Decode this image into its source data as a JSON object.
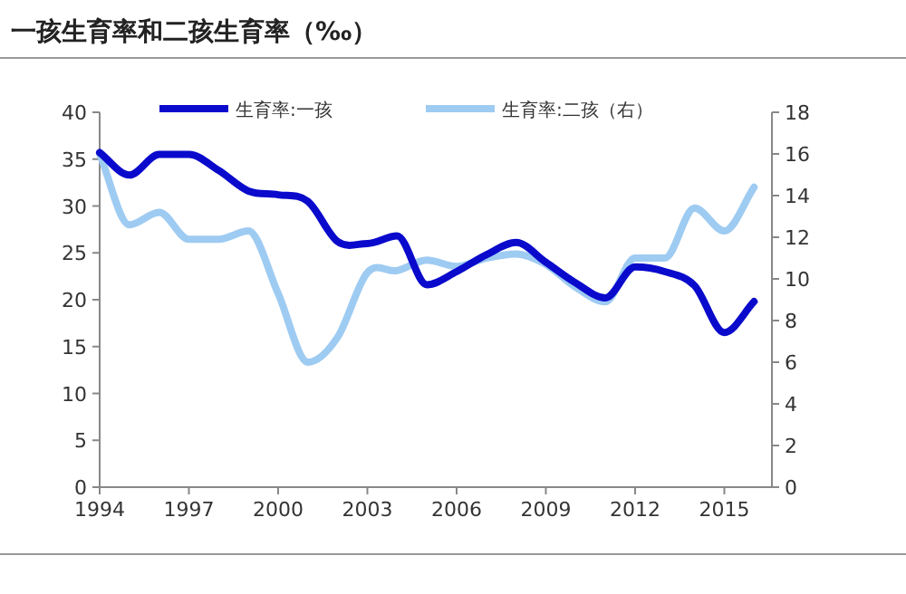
{
  "chart_data": {
    "type": "line",
    "title": "一孩生育率和二孩生育率（‰）",
    "x": [
      1994,
      1995,
      1996,
      1997,
      1998,
      1999,
      2000,
      2001,
      2002,
      2003,
      2004,
      2005,
      2006,
      2007,
      2008,
      2009,
      2010,
      2011,
      2012,
      2013,
      2014,
      2015,
      2016
    ],
    "series": [
      {
        "name": "生育率:一孩",
        "color": "#0a0acc",
        "values": [
          35.7,
          33.3,
          35.5,
          35.5,
          33.8,
          31.6,
          31.2,
          30.5,
          26.2,
          26.0,
          26.8,
          21.6,
          23.0,
          24.8,
          26.1,
          24.0,
          21.8,
          20.2,
          23.5,
          23.0,
          21.5,
          16.5,
          19.8
        ]
      },
      {
        "name": "生育率:二孩（右）",
        "color": "#9ecbf2",
        "axis": "y2",
        "values": [
          16.0,
          12.6,
          13.2,
          11.9,
          11.9,
          12.3,
          9.3,
          6.0,
          7.2,
          10.3,
          10.4,
          10.9,
          10.6,
          11.0,
          11.2,
          10.7,
          9.6,
          8.9,
          11.0,
          11.0,
          13.4,
          12.3,
          14.4
        ]
      }
    ],
    "xlim": [
      1994,
      2016.6
    ],
    "xticks": [
      1994,
      1997,
      2000,
      2003,
      2006,
      2009,
      2012,
      2015
    ],
    "ylim": [
      0,
      40
    ],
    "yticks": [
      0,
      5,
      10,
      15,
      20,
      25,
      30,
      35,
      40
    ],
    "y2lim": [
      0,
      18
    ],
    "y2ticks": [
      0,
      2,
      4,
      6,
      8,
      10,
      12,
      14,
      16,
      18
    ],
    "legend": "top",
    "grid": false,
    "marker": "none",
    "line_style": "solid"
  }
}
